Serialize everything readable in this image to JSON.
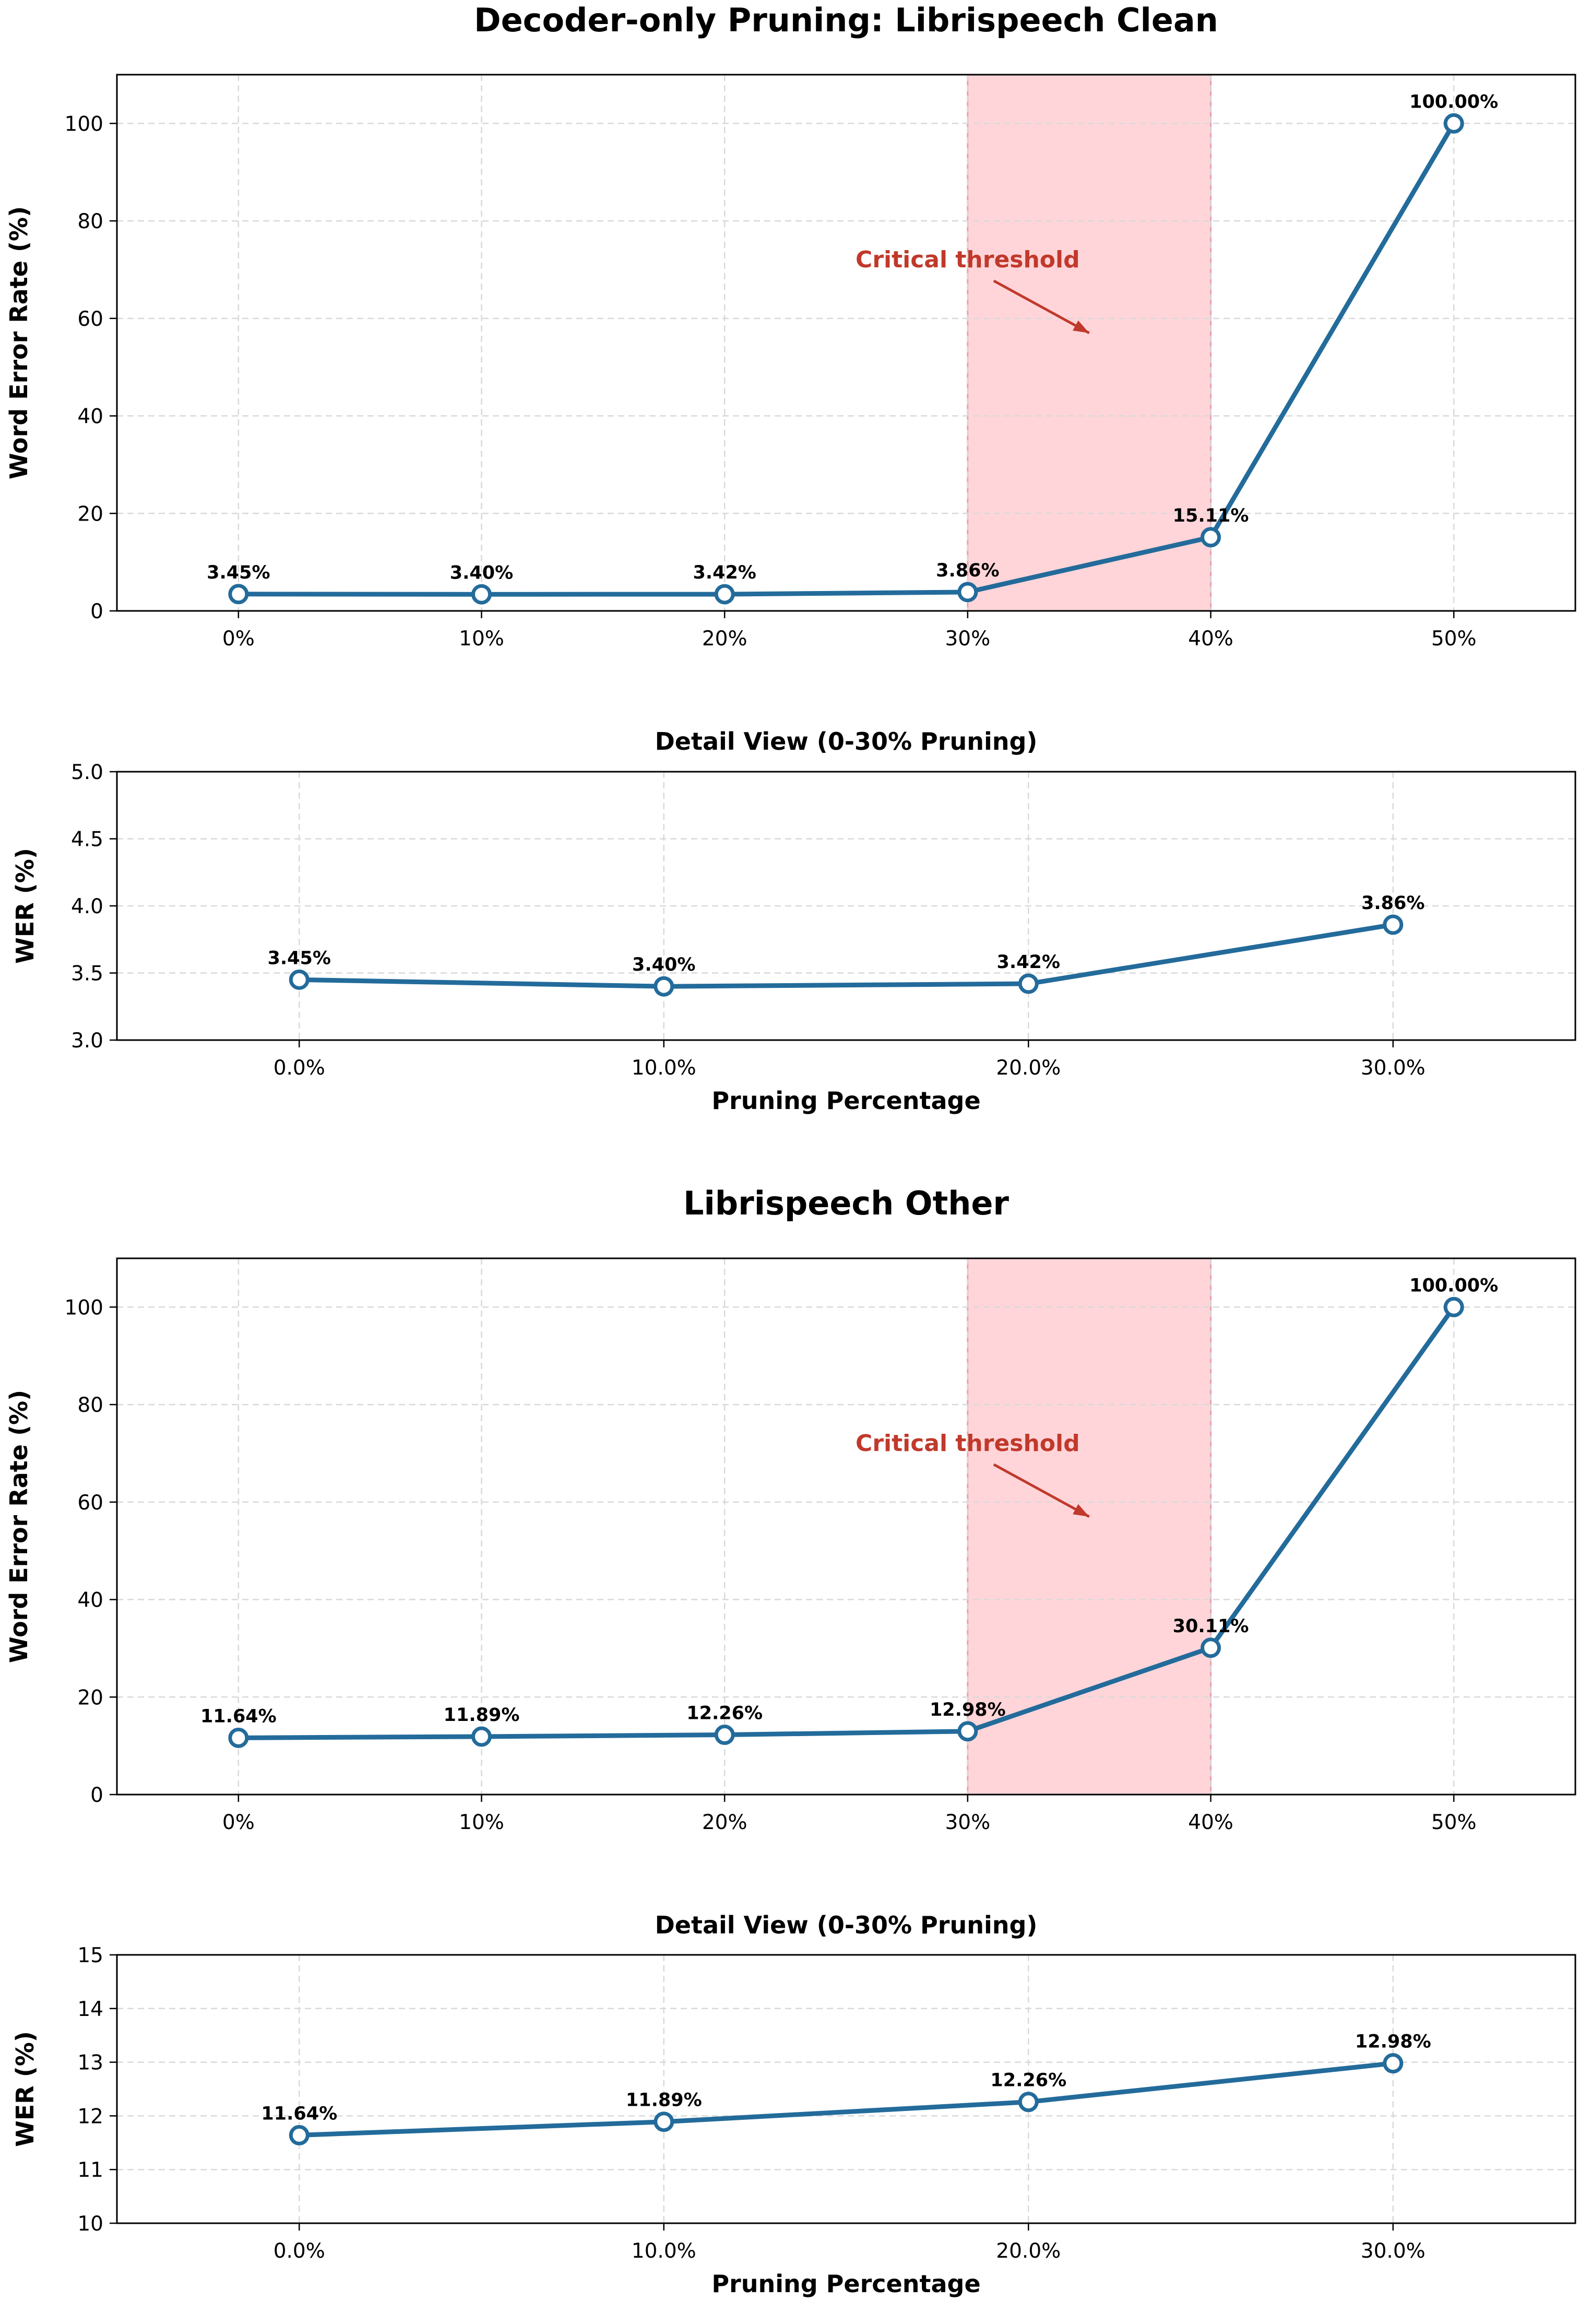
{
  "figure": {
    "colors": {
      "line": "#236b9b",
      "marker_face": "#ffffff",
      "band": "#ffb3ba",
      "annotation": "#c0392b",
      "grid": "#d9d9d9",
      "text": "#000000"
    }
  },
  "chart_data": [
    {
      "type": "line",
      "title": "Decoder-only Pruning: Librispeech Clean",
      "xlabel": "",
      "ylabel": "Word Error Rate (%)",
      "categories": [
        "0%",
        "10%",
        "20%",
        "30%",
        "40%",
        "50%"
      ],
      "x": [
        0,
        10,
        20,
        30,
        40,
        50
      ],
      "values": [
        3.45,
        3.4,
        3.42,
        3.86,
        15.11,
        100.0
      ],
      "point_labels": [
        "3.45%",
        "3.40%",
        "3.42%",
        "3.86%",
        "15.11%",
        "100.00%"
      ],
      "xlim": [
        -5,
        55
      ],
      "ylim": [
        0,
        110
      ],
      "yticks": [
        "0",
        "20",
        "40",
        "60",
        "80",
        "100"
      ],
      "highlight_band": [
        30,
        40
      ],
      "annotation": {
        "text": "Critical threshold",
        "text_at": [
          30,
          72
        ],
        "arrow_to": [
          35,
          57
        ]
      },
      "grid": true
    },
    {
      "type": "line",
      "title": "Detail View (0-30% Pruning)",
      "xlabel": "Pruning Percentage",
      "ylabel": "WER (%)",
      "categories": [
        "0.0%",
        "10.0%",
        "20.0%",
        "30.0%"
      ],
      "x": [
        0,
        10,
        20,
        30
      ],
      "values": [
        3.45,
        3.4,
        3.42,
        3.86
      ],
      "point_labels": [
        "3.45%",
        "3.40%",
        "3.42%",
        "3.86%"
      ],
      "xlim": [
        -5,
        35
      ],
      "ylim": [
        3.0,
        5.0
      ],
      "yticks": [
        "3.0",
        "3.5",
        "4.0",
        "4.5",
        "5.0"
      ],
      "grid": true
    },
    {
      "type": "line",
      "title": "Librispeech Other",
      "xlabel": "",
      "ylabel": "Word Error Rate (%)",
      "categories": [
        "0%",
        "10%",
        "20%",
        "30%",
        "40%",
        "50%"
      ],
      "x": [
        0,
        10,
        20,
        30,
        40,
        50
      ],
      "values": [
        11.64,
        11.89,
        12.26,
        12.98,
        30.11,
        100.0
      ],
      "point_labels": [
        "11.64%",
        "11.89%",
        "12.26%",
        "12.98%",
        "30.11%",
        "100.00%"
      ],
      "xlim": [
        -5,
        55
      ],
      "ylim": [
        0,
        110
      ],
      "yticks": [
        "0",
        "20",
        "40",
        "60",
        "80",
        "100"
      ],
      "highlight_band": [
        30,
        40
      ],
      "annotation": {
        "text": "Critical threshold",
        "text_at": [
          30,
          72
        ],
        "arrow_to": [
          35,
          57
        ]
      },
      "grid": true
    },
    {
      "type": "line",
      "title": "Detail View (0-30% Pruning)",
      "xlabel": "Pruning Percentage",
      "ylabel": "WER (%)",
      "categories": [
        "0.0%",
        "10.0%",
        "20.0%",
        "30.0%"
      ],
      "x": [
        0,
        10,
        20,
        30
      ],
      "values": [
        11.64,
        11.89,
        12.26,
        12.98
      ],
      "point_labels": [
        "11.64%",
        "11.89%",
        "12.26%",
        "12.98%"
      ],
      "xlim": [
        -5,
        35
      ],
      "ylim": [
        10,
        15
      ],
      "yticks": [
        "10",
        "11",
        "12",
        "13",
        "14",
        "15"
      ],
      "grid": true
    }
  ]
}
